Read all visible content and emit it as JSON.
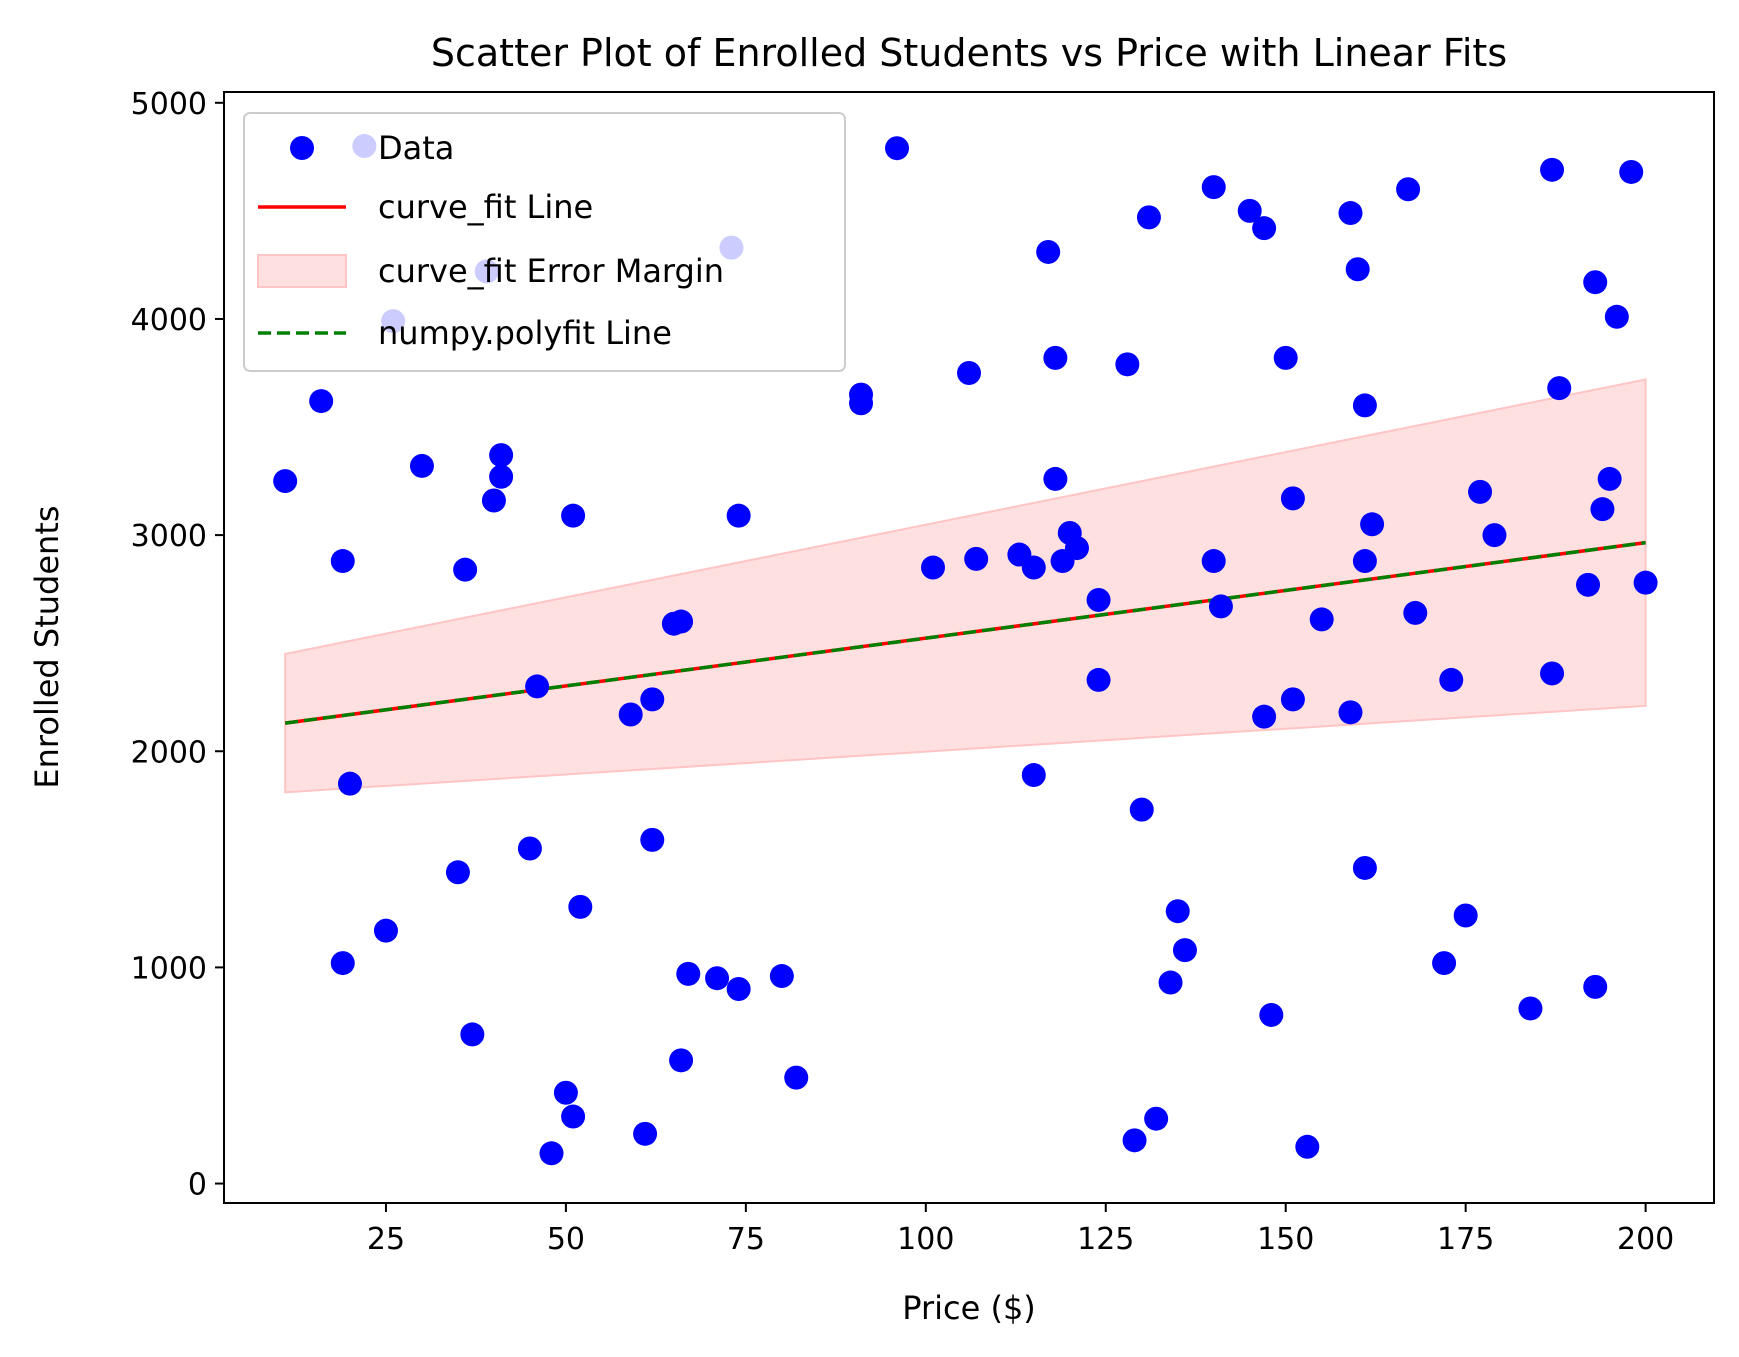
{
  "chart_data": {
    "type": "scatter",
    "title": "Scatter Plot of Enrolled Students vs Price with Linear Fits",
    "xlabel": "Price ($)",
    "ylabel": "Enrolled Students",
    "xlim": [
      2.5,
      209.5
    ],
    "ylim": [
      -90,
      5050
    ],
    "xticks": [
      25,
      50,
      75,
      100,
      125,
      150,
      175,
      200
    ],
    "yticks": [
      0,
      1000,
      2000,
      3000,
      4000,
      5000
    ],
    "xtick_labels": [
      "25",
      "50",
      "75",
      "100",
      "125",
      "150",
      "175",
      "200"
    ],
    "ytick_labels": [
      "0",
      "1000",
      "2000",
      "3000",
      "4000",
      "5000"
    ],
    "grid": false,
    "legend_position": "upper-left",
    "legend": [
      "Data",
      "curve_fit Line",
      "curve_fit Error Margin",
      "numpy.polyfit Line"
    ],
    "colors": {
      "data": "#0000ff",
      "curve_fit_line": "#ff0000",
      "error_margin_fill": "#ffe0e0",
      "error_margin_edge": "#ffc4c4",
      "polyfit_line": "#008000"
    },
    "fit_line": {
      "x": [
        11,
        200
      ],
      "y": [
        2130,
        2965
      ]
    },
    "error_margin": {
      "x": [
        11,
        200
      ],
      "upper": [
        2450,
        3720
      ],
      "lower": [
        1810,
        2210
      ]
    },
    "series": [
      {
        "name": "Data",
        "x": [
          22,
          26,
          39,
          73,
          96,
          16,
          11,
          19,
          20,
          19,
          25,
          30,
          36,
          35,
          37,
          41,
          41,
          40,
          46,
          45,
          48,
          50,
          51,
          52,
          51,
          59,
          61,
          62,
          62,
          65,
          66,
          66,
          67,
          71,
          74,
          74,
          80,
          82,
          91,
          91,
          101,
          106,
          107,
          113,
          115,
          115,
          117,
          118,
          118,
          119,
          120,
          121,
          124,
          124,
          128,
          129,
          130,
          131,
          132,
          134,
          135,
          136,
          140,
          140,
          141,
          145,
          147,
          147,
          148,
          150,
          151,
          151,
          153,
          155,
          159,
          159,
          160,
          161,
          161,
          161,
          162,
          167,
          168,
          172,
          173,
          175,
          177,
          179,
          184,
          187,
          187,
          188,
          192,
          193,
          193,
          194,
          195,
          196,
          198,
          200
        ],
        "y": [
          4800,
          3990,
          4220,
          4330,
          4790,
          3620,
          3250,
          2880,
          1850,
          1020,
          1170,
          3320,
          2840,
          1440,
          690,
          3370,
          3270,
          3160,
          2300,
          1550,
          140,
          420,
          3090,
          1280,
          310,
          2170,
          230,
          1590,
          2240,
          2590,
          2600,
          570,
          970,
          950,
          3090,
          900,
          960,
          490,
          3610,
          3650,
          2850,
          3750,
          2890,
          2910,
          1890,
          2850,
          4310,
          3820,
          3260,
          2880,
          3010,
          2940,
          2700,
          2330,
          3790,
          200,
          1730,
          4470,
          300,
          930,
          1260,
          1080,
          4610,
          2880,
          2670,
          4500,
          4420,
          2160,
          780,
          3820,
          3170,
          2240,
          170,
          2610,
          4490,
          2180,
          4230,
          3600,
          2880,
          1460,
          3050,
          4600,
          2640,
          1020,
          2330,
          1240,
          3200,
          3000,
          810,
          4690,
          2360,
          3680,
          2770,
          4170,
          910,
          3120,
          3260,
          4010,
          4680,
          2780
        ]
      },
      {
        "name": "curve_fit Line"
      },
      {
        "name": "curve_fit Error Margin"
      },
      {
        "name": "numpy.polyfit Line"
      }
    ]
  }
}
